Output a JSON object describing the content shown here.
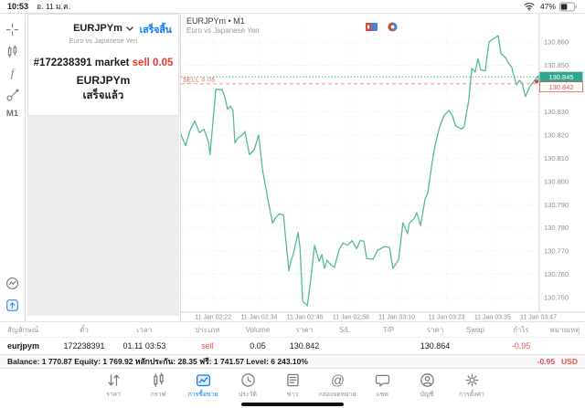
{
  "colors": {
    "accent_blue": "#0a7aff",
    "sell_red": "#e8392e",
    "table_red": "#e0544a",
    "teal_badge": "#2fa78f",
    "line_teal": "#56b89e",
    "gray_text": "#8e8e93"
  },
  "status_bar": {
    "time": "10:53",
    "date": "อ. 11 ม.ค.",
    "battery_percent": "47%",
    "icons": [
      "wifi-icon",
      "battery-icon"
    ]
  },
  "sidebar": {
    "tools": [
      {
        "name": "crosshair-button",
        "icon": "crosshair-icon"
      },
      {
        "name": "chart-type-button",
        "icon": "candlestick-icon"
      },
      {
        "name": "indicators-button",
        "icon": "indicators-icon"
      },
      {
        "name": "objects-button",
        "icon": "objects-icon"
      }
    ],
    "timeframe": "M1",
    "bottom": [
      {
        "name": "trading-stats-button",
        "icon": "stats-icon"
      },
      {
        "name": "new-order-button",
        "icon": "new-order-icon"
      }
    ]
  },
  "order_panel": {
    "symbol": "EURJPYm",
    "description": "Euro vs Japanese Yen",
    "done_button": "เสร็จสิ้น",
    "order_line_prefix": "#172238391 market ",
    "order_line_action": "sell 0.05",
    "order_symbol": "EURJPYm",
    "order_status": "เสร็จแล้ว"
  },
  "chart_header": {
    "title": "EURJPYm • M1",
    "subtitle": "Euro vs Japanese Yen",
    "flag_icons": [
      "chart-flag-icon-1",
      "chart-flag-icon-2"
    ]
  },
  "chart_data": {
    "type": "line",
    "symbol": "EURJPYm",
    "timeframe": "M1",
    "line_color": "#56b89e",
    "grid": true,
    "legend_position": "none",
    "ylim": [
      130.744,
      130.866
    ],
    "y_ticks": [
      "130.860",
      "130.850",
      "130.840",
      "130.830",
      "130.820",
      "130.810",
      "130.800",
      "130.790",
      "130.780",
      "130.770",
      "130.760",
      "130.750"
    ],
    "x_ticks": [
      {
        "label": "11 Jan 02:22",
        "t": 8.4
      },
      {
        "label": "11 Jan 02:34",
        "t": 20.4
      },
      {
        "label": "11 Jan 02:46",
        "t": 32.4
      },
      {
        "label": "11 Jan 02:58",
        "t": 44.4
      },
      {
        "label": "11 Jan 03:10",
        "t": 56.4
      },
      {
        "label": "11 Jan 03:23",
        "t": 69.4
      },
      {
        "label": "11 Jan 03:35",
        "t": 81.4
      },
      {
        "label": "11 Jan 03:47",
        "t": 93.4
      }
    ],
    "bid": {
      "price": 130.845,
      "axis_label": "130.845"
    },
    "sell_position": {
      "price": 130.842,
      "label": "SELL 0.05",
      "axis_label": "130.842",
      "volume": "0.05"
    },
    "points": [
      [
        0,
        130.82
      ],
      [
        1.2,
        130.8155
      ],
      [
        2.4,
        130.822
      ],
      [
        3.6,
        130.826
      ],
      [
        4.8,
        130.821
      ],
      [
        6.0,
        130.8225
      ],
      [
        7.2,
        130.817
      ],
      [
        7.6,
        130.8115
      ],
      [
        9.1,
        130.8395
      ],
      [
        10.8,
        130.8395
      ],
      [
        11.5,
        130.836
      ],
      [
        12.2,
        130.831
      ],
      [
        12.9,
        130.8325
      ],
      [
        13.6,
        130.8305
      ],
      [
        14.1,
        130.8165
      ],
      [
        14.8,
        130.8185
      ],
      [
        16.0,
        130.82
      ],
      [
        16.7,
        130.8215
      ],
      [
        17.9,
        130.8115
      ],
      [
        19.1,
        130.8135
      ],
      [
        20.3,
        130.82
      ],
      [
        21.3,
        130.805
      ],
      [
        22.7,
        130.7925
      ],
      [
        23.9,
        130.782
      ],
      [
        24.6,
        130.784
      ],
      [
        25.6,
        130.786
      ],
      [
        26.8,
        130.7855
      ],
      [
        27.2,
        130.778
      ],
      [
        28.2,
        130.7615
      ],
      [
        28.7,
        130.7655
      ],
      [
        29.4,
        130.769
      ],
      [
        30.6,
        130.778
      ],
      [
        31.1,
        130.7715
      ],
      [
        31.8,
        130.7485
      ],
      [
        33.0,
        130.7465
      ],
      [
        33.9,
        130.7575
      ],
      [
        34.9,
        130.7725
      ],
      [
        36.1,
        130.7655
      ],
      [
        36.8,
        130.7685
      ],
      [
        37.5,
        130.7625
      ],
      [
        38.2,
        130.766
      ],
      [
        38.9,
        130.7645
      ],
      [
        40.1,
        130.763
      ],
      [
        41.3,
        130.7705
      ],
      [
        42.3,
        130.7735
      ],
      [
        43.5,
        130.7725
      ],
      [
        44.7,
        130.7745
      ],
      [
        45.9,
        130.771
      ],
      [
        46.8,
        130.7745
      ],
      [
        47.8,
        130.7743
      ],
      [
        48.5,
        130.7668
      ],
      [
        50.2,
        130.7665
      ],
      [
        51.4,
        130.7704
      ],
      [
        53.3,
        130.772
      ],
      [
        54.5,
        130.7715
      ],
      [
        55.4,
        130.7625
      ],
      [
        56.9,
        130.7665
      ],
      [
        58.0,
        130.7822
      ],
      [
        59.2,
        130.7775
      ],
      [
        59.7,
        130.782
      ],
      [
        60.9,
        130.784
      ],
      [
        61.6,
        130.7865
      ],
      [
        62.6,
        130.781
      ],
      [
        63.8,
        130.7925
      ],
      [
        64.5,
        130.795
      ],
      [
        65.7,
        130.809
      ],
      [
        66.4,
        130.8155
      ],
      [
        67.6,
        130.8235
      ],
      [
        68.8,
        130.8285
      ],
      [
        70.0,
        130.8305
      ],
      [
        70.9,
        130.8285
      ],
      [
        71.7,
        130.824
      ],
      [
        73.3,
        130.8225
      ],
      [
        74.0,
        130.8235
      ],
      [
        75.2,
        130.835
      ],
      [
        76.0,
        130.8487
      ],
      [
        76.9,
        130.847
      ],
      [
        77.6,
        130.8528
      ],
      [
        78.3,
        130.848
      ],
      [
        79.5,
        130.8475
      ],
      [
        80.5,
        130.86
      ],
      [
        81.7,
        130.8615
      ],
      [
        82.9,
        130.8627
      ],
      [
        83.6,
        130.855
      ],
      [
        84.8,
        130.8533
      ],
      [
        85.5,
        130.851
      ],
      [
        86.5,
        130.849
      ],
      [
        86.7,
        130.847
      ],
      [
        87.7,
        130.8415
      ],
      [
        88.4,
        130.8435
      ],
      [
        89.1,
        130.8425
      ],
      [
        90.0,
        130.8365
      ],
      [
        91.2,
        130.841
      ],
      [
        92.4,
        130.8435
      ],
      [
        93.4,
        130.8455
      ],
      [
        94.0,
        130.843
      ]
    ]
  },
  "trade_table": {
    "columns": [
      {
        "header": "สัญลักษณ์",
        "value": "eurjpym",
        "align": "left",
        "bold": true
      },
      {
        "header": "ตั๋ว",
        "value": "172238391"
      },
      {
        "header": "เวลา",
        "value": "01.11 03:53"
      },
      {
        "header": "ประเภท",
        "value": "sell",
        "color": "red"
      },
      {
        "header": "Volume",
        "value": "0.05"
      },
      {
        "header": "ราคา",
        "value": "130.842"
      },
      {
        "header": "S/L",
        "value": ""
      },
      {
        "header": "T/P",
        "value": ""
      },
      {
        "header": "ราคา",
        "value": "130.864"
      },
      {
        "header": "Swap",
        "value": ""
      },
      {
        "header": "กำไร",
        "value": "-0.95",
        "color": "red"
      },
      {
        "header": "หมายเหตุ",
        "value": ""
      }
    ]
  },
  "balance_bar": {
    "summary": "Balance: 1 770.87 Equity: 1 769.92 หลักประกัน: 28.35 ฟรี: 1 741.57 Level: 6 243.10%",
    "profit": "-0.95",
    "currency": "USD"
  },
  "tab_bar": {
    "items": [
      {
        "label": "ราคา",
        "icon": "arrows-updown-icon",
        "name": "tab-quotes",
        "active": false
      },
      {
        "label": "กราฟ",
        "icon": "candlestick-icon",
        "name": "tab-charts",
        "active": false
      },
      {
        "label": "การซื้อขาย",
        "icon": "trade-chart-icon",
        "name": "tab-trade",
        "active": true
      },
      {
        "label": "ประวัติ",
        "icon": "history-clock-icon",
        "name": "tab-history",
        "active": false
      },
      {
        "label": "ข่าว",
        "icon": "news-icon",
        "name": "tab-news",
        "active": false
      },
      {
        "label": "กล่องจดหมาย",
        "icon": "mailbox-icon",
        "name": "tab-mailbox",
        "active": false
      },
      {
        "label": "แชท",
        "icon": "chat-icon",
        "name": "tab-chat",
        "active": false
      },
      {
        "label": "บัญชี",
        "icon": "account-icon",
        "name": "tab-accounts",
        "active": false
      },
      {
        "label": "การตั้งค่า",
        "icon": "settings-gear-icon",
        "name": "tab-settings",
        "active": false
      }
    ]
  }
}
